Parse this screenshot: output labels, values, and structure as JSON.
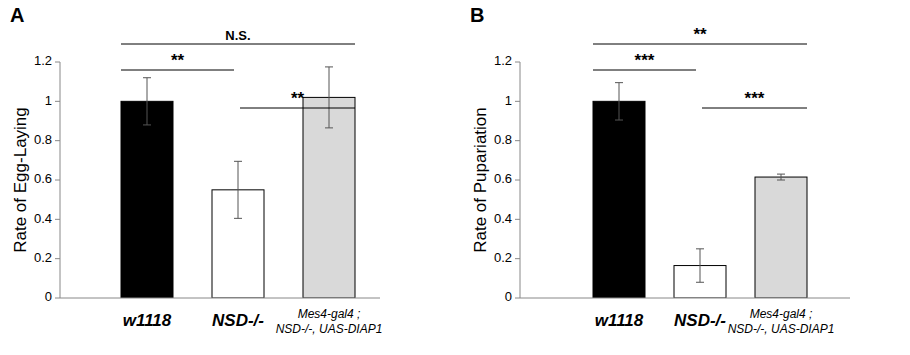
{
  "chart_data": [
    {
      "type": "bar",
      "title": "A",
      "y_label": "Rate of Egg-Laying",
      "categories": [
        "w1118",
        "NSD-/-",
        "Mes4-gal4 ; NSD-/-, UAS-DIAP1"
      ],
      "values": [
        1.0,
        0.55,
        1.02
      ],
      "errors": [
        0.12,
        0.145,
        0.155
      ],
      "colors": [
        "#000000",
        "#ffffff",
        "#d9d9d9"
      ],
      "ylim": [
        0,
        1.2
      ],
      "yticks": [
        0,
        0.2,
        0.4,
        0.6,
        0.8,
        1,
        1.2
      ],
      "grid": false,
      "annotations": [
        {
          "from": 0,
          "to": 2,
          "label": "N.S."
        },
        {
          "from": 0,
          "to": 1,
          "label": "**"
        },
        {
          "from": 1,
          "to": 2,
          "label": "**"
        }
      ]
    },
    {
      "type": "bar",
      "title": "B",
      "y_label": "Rate of Pupariation",
      "categories": [
        "w1118",
        "NSD-/-",
        "Mes4-gal4 ; NSD-/-, UAS-DIAP1"
      ],
      "values": [
        1.0,
        0.165,
        0.615
      ],
      "errors": [
        0.095,
        0.085,
        0.015
      ],
      "colors": [
        "#000000",
        "#ffffff",
        "#d9d9d9"
      ],
      "ylim": [
        0,
        1.2
      ],
      "yticks": [
        0,
        0.2,
        0.4,
        0.6,
        0.8,
        1,
        1.2
      ],
      "grid": false,
      "annotations": [
        {
          "from": 0,
          "to": 2,
          "label": "**"
        },
        {
          "from": 0,
          "to": 1,
          "label": "***"
        },
        {
          "from": 1,
          "to": 2,
          "label": "***"
        }
      ]
    }
  ]
}
